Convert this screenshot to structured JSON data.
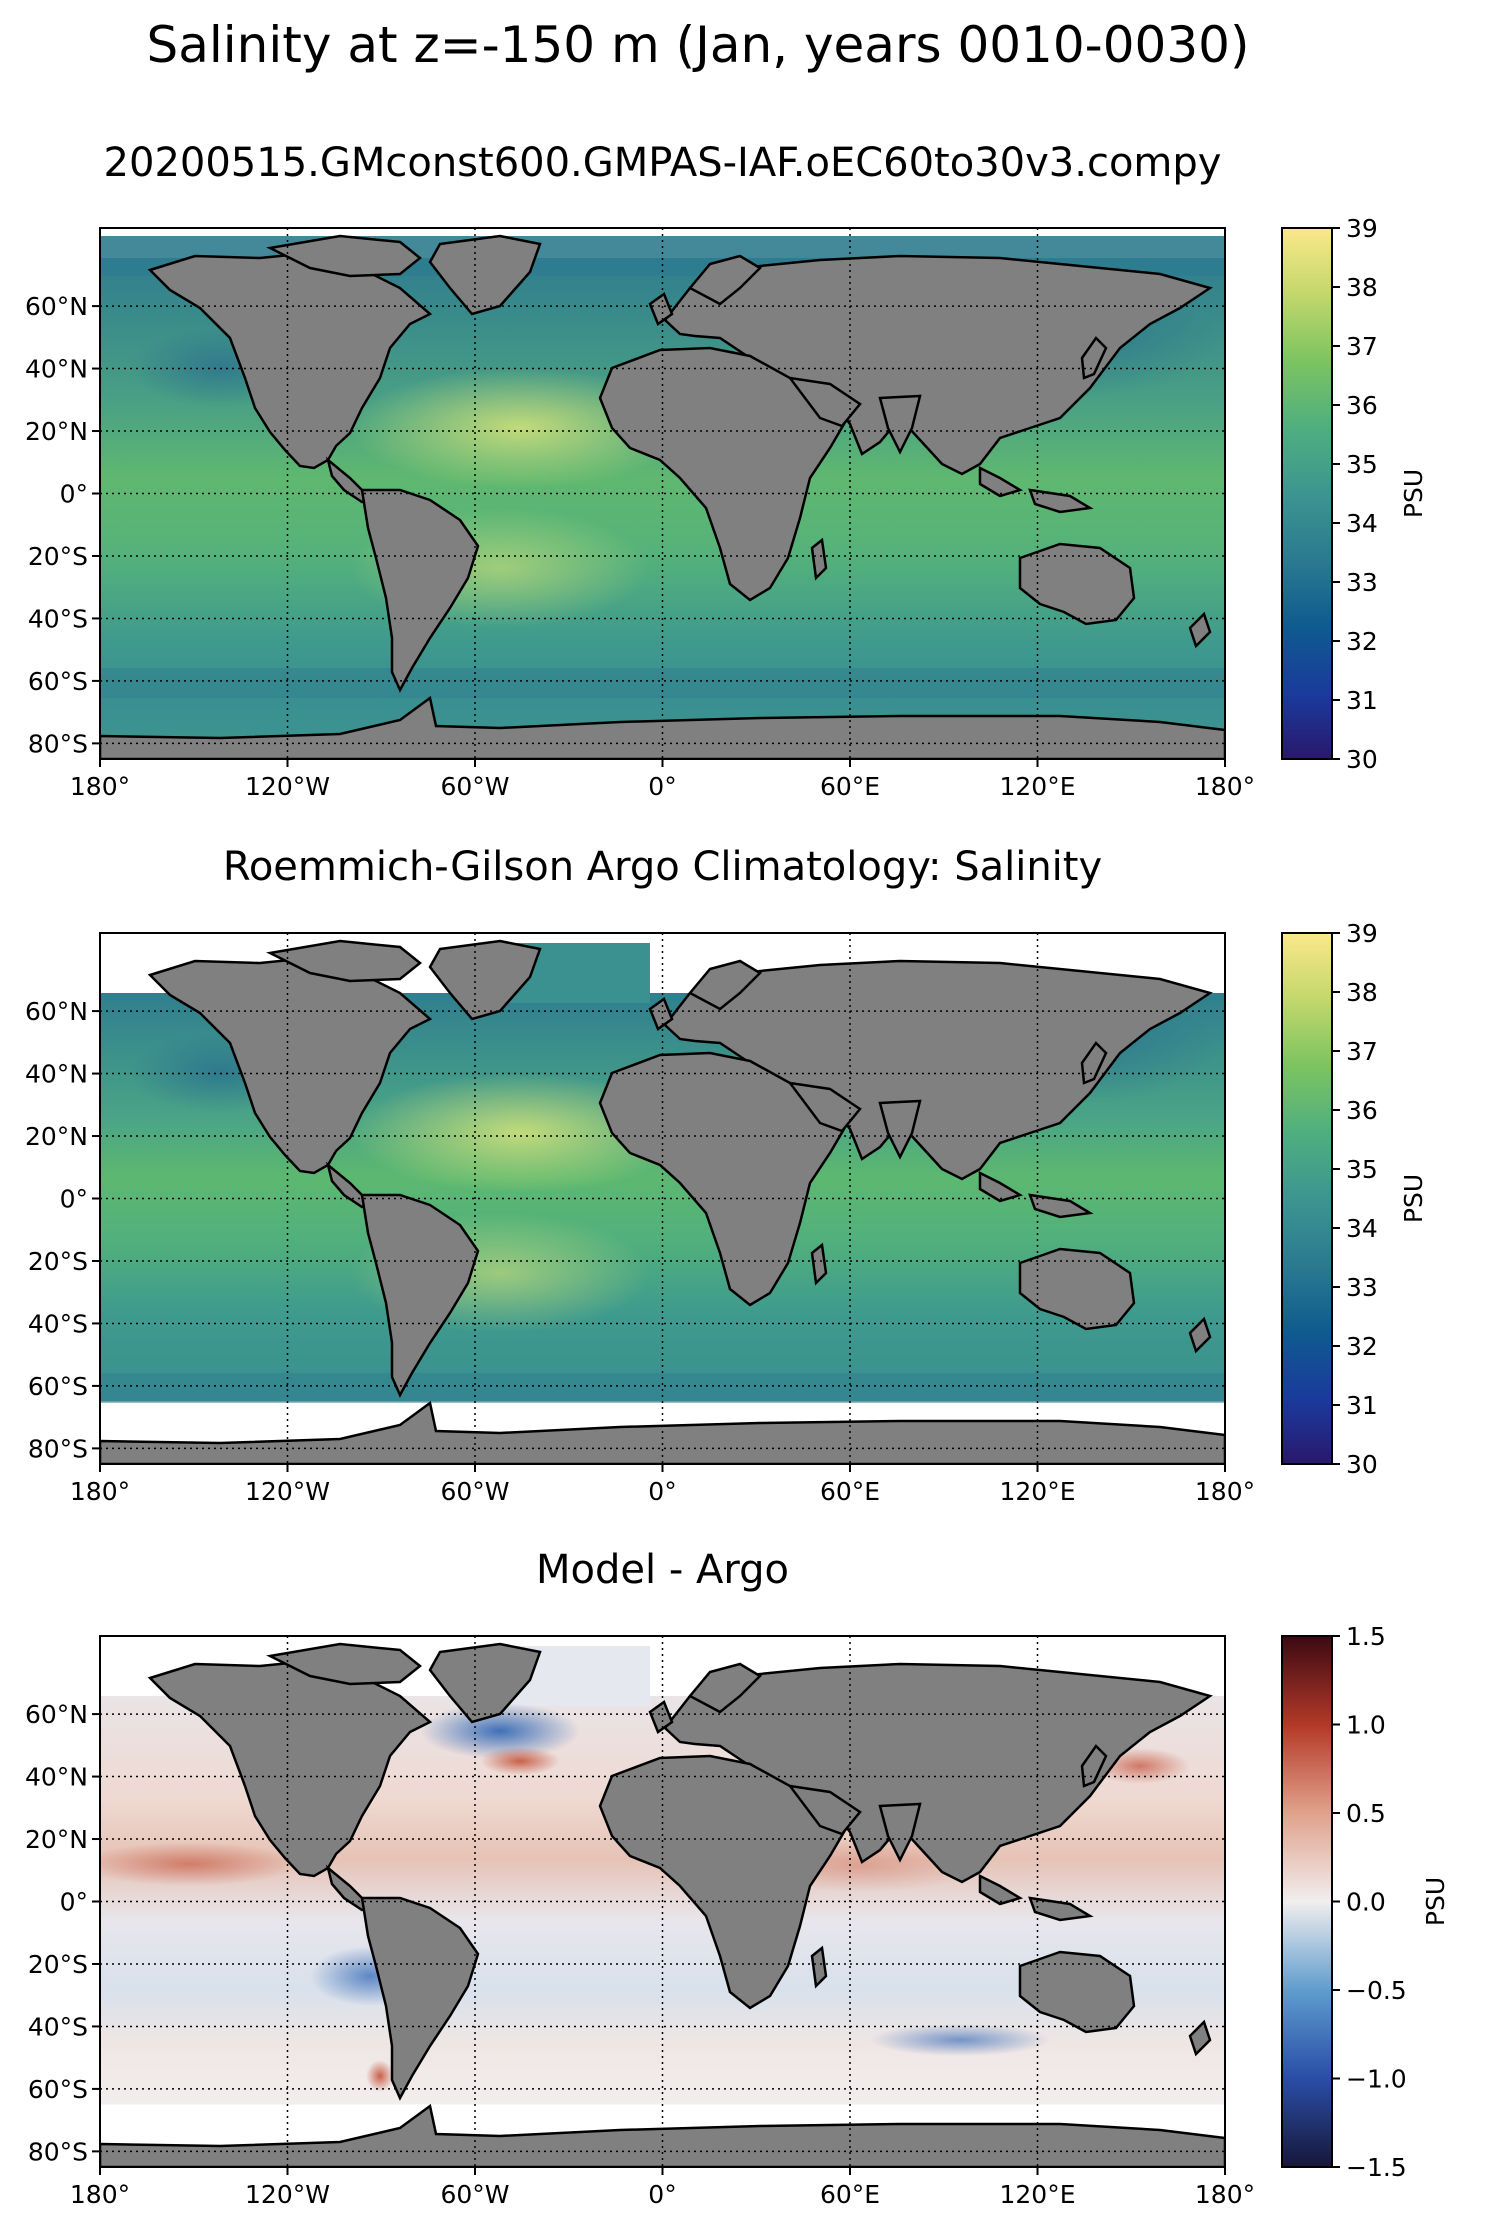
{
  "figure": {
    "title": "Salinity at z=-150 m (Jan, years 0010-0030)"
  },
  "axes": {
    "lon_ticks": [
      "180°",
      "120°W",
      "60°W",
      "0°",
      "60°E",
      "120°E",
      "180°"
    ],
    "lat_ticks": [
      "60°N",
      "40°N",
      "20°N",
      "0°",
      "20°S",
      "40°S",
      "60°S",
      "80°S"
    ],
    "lon_values": [
      -180,
      -120,
      -60,
      0,
      60,
      120,
      180
    ],
    "lat_values": [
      60,
      40,
      20,
      0,
      -20,
      -40,
      -60,
      -80
    ],
    "lon_range": [
      -180,
      180
    ],
    "lat_range": [
      -85,
      85
    ],
    "gridlines": "dotted"
  },
  "panels": [
    {
      "title": "20200515.GMconst600.GMPAS-IAF.oEC60to30v3.compy",
      "colorbar": {
        "label": "PSU",
        "ticks": [
          "30",
          "31",
          "32",
          "33",
          "34",
          "35",
          "36",
          "37",
          "38",
          "39"
        ],
        "range": [
          30,
          39
        ],
        "colormap": "haline",
        "colors": [
          "#2a186c",
          "#1a3a9c",
          "#0f5b8f",
          "#2a7990",
          "#3d9590",
          "#4eae80",
          "#7cc460",
          "#c5d86d",
          "#fbe88a"
        ]
      }
    },
    {
      "title": "Roemmich-Gilson Argo Climatology: Salinity",
      "colorbar": {
        "label": "PSU",
        "ticks": [
          "30",
          "31",
          "32",
          "33",
          "34",
          "35",
          "36",
          "37",
          "38",
          "39"
        ],
        "range": [
          30,
          39
        ],
        "colormap": "haline",
        "colors": [
          "#2a186c",
          "#1a3a9c",
          "#0f5b8f",
          "#2a7990",
          "#3d9590",
          "#4eae80",
          "#7cc460",
          "#c5d86d",
          "#fbe88a"
        ]
      }
    },
    {
      "title": "Model - Argo",
      "colorbar": {
        "label": "PSU",
        "ticks": [
          "−1.5",
          "−1.0",
          "−0.5",
          "0.0",
          "0.5",
          "1.0",
          "1.5"
        ],
        "range": [
          -1.5,
          1.5
        ],
        "colormap": "balance",
        "colors": [
          "#17173a",
          "#2a4fa8",
          "#5d9bcd",
          "#f1eeee",
          "#e0a08a",
          "#b43a28",
          "#3c0912"
        ]
      }
    }
  ],
  "colors": {
    "land": "#808080",
    "no_data": "#ffffff"
  }
}
